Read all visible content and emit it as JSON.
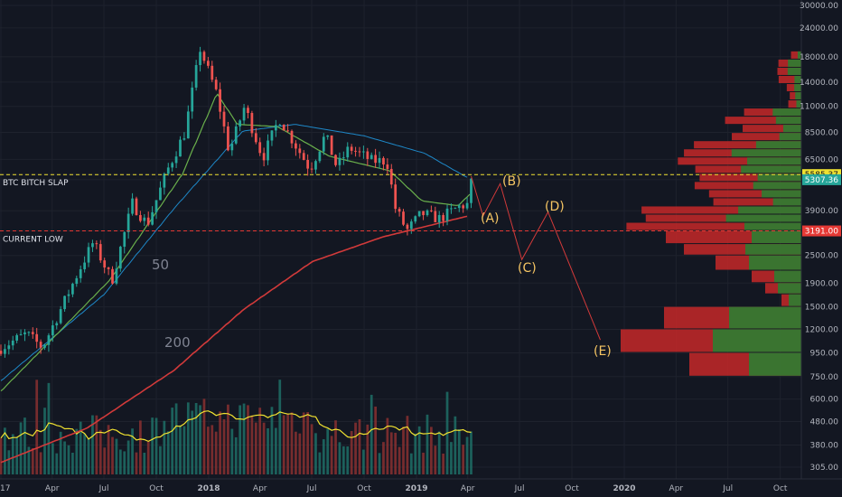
{
  "chart_data": {
    "type": "candlestick",
    "scale": "log",
    "colors": {
      "background": "#131722",
      "grid": "#1e222d",
      "up": "#26a69a",
      "down": "#ef5350",
      "ma50": "#1e88c8",
      "ma200": "#d23a3a",
      "ma_short": "#6ab04c",
      "volume_ma": "#f0e130",
      "wave": "#f5c563",
      "level_upper": "#f0e130",
      "level_lower": "#e53935",
      "axis_text": "#b2b5be",
      "profile_up": "#2e7d32",
      "profile_down": "#c62828"
    },
    "y_ticks": [
      305,
      380,
      480,
      600,
      750,
      950,
      1200,
      1500,
      1900,
      2500,
      3191,
      3900,
      5307.36,
      5585.37,
      6500,
      8500,
      11000,
      14000,
      18000,
      24000,
      30000
    ],
    "y_tick_labels": [
      "305.00",
      "380.00",
      "480.00",
      "600.00",
      "750.00",
      "950.00",
      "1200.00",
      "1500.00",
      "1900.00",
      "2500.00",
      "3191.00",
      "3900.00",
      "5307.36",
      "5585.37",
      "6500.00",
      "8500.00",
      "11000.00",
      "14000.00",
      "18000.00",
      "24000.00",
      "30000.00"
    ],
    "x_ticks": [
      "17",
      "Apr",
      "Jul",
      "Oct",
      "2018",
      "Apr",
      "Jul",
      "Oct",
      "2019",
      "Apr",
      "Jul",
      "Oct",
      "2020",
      "Apr",
      "Jul",
      "Oct"
    ],
    "horizontal_levels": [
      {
        "label": "BTC BITCH SLAP",
        "value": 5585.37,
        "style": "dashed"
      },
      {
        "label": "CURRENT LOW",
        "value": 3191.0,
        "style": "dashed"
      }
    ],
    "price_tags": [
      {
        "label": "5585.37",
        "value": 5585.37
      },
      {
        "label": "5307.36",
        "value": 5307.36
      },
      {
        "label": "3191.00",
        "value": 3191
      }
    ],
    "moving_average_labels": [
      {
        "label": "50"
      },
      {
        "label": "200"
      }
    ],
    "wave_labels": [
      {
        "label": "(A)",
        "value": 3700
      },
      {
        "label": "(B)",
        "value": 5100
      },
      {
        "label": "(C)",
        "value": 2150
      },
      {
        "label": "(D)",
        "value": 4200
      },
      {
        "label": "(E)",
        "value": 1000
      }
    ],
    "price_path_keypoints": [
      {
        "date": "2017-01-01",
        "price": 1000
      },
      {
        "date": "2017-02-15",
        "price": 1150
      },
      {
        "date": "2017-03-15",
        "price": 1000
      },
      {
        "date": "2017-05-20",
        "price": 2200
      },
      {
        "date": "2017-06-12",
        "price": 2850
      },
      {
        "date": "2017-07-15",
        "price": 1950
      },
      {
        "date": "2017-08-20",
        "price": 4200
      },
      {
        "date": "2017-09-15",
        "price": 3400
      },
      {
        "date": "2017-10-20",
        "price": 5800
      },
      {
        "date": "2017-11-20",
        "price": 8500
      },
      {
        "date": "2017-12-17",
        "price": 19500
      },
      {
        "date": "2018-01-15",
        "price": 12500
      },
      {
        "date": "2018-02-06",
        "price": 7000
      },
      {
        "date": "2018-03-05",
        "price": 11000
      },
      {
        "date": "2018-04-06",
        "price": 6600
      },
      {
        "date": "2018-05-05",
        "price": 9800
      },
      {
        "date": "2018-06-28",
        "price": 5900
      },
      {
        "date": "2018-07-25",
        "price": 8300
      },
      {
        "date": "2018-08-14",
        "price": 6000
      },
      {
        "date": "2018-09-05",
        "price": 7300
      },
      {
        "date": "2018-10-15",
        "price": 6400
      },
      {
        "date": "2018-11-10",
        "price": 6400
      },
      {
        "date": "2018-11-25",
        "price": 4000
      },
      {
        "date": "2018-12-15",
        "price": 3200
      },
      {
        "date": "2019-01-10",
        "price": 3800
      },
      {
        "date": "2019-02-10",
        "price": 3600
      },
      {
        "date": "2019-03-20",
        "price": 4100
      },
      {
        "date": "2019-04-01",
        "price": 4150
      },
      {
        "date": "2019-04-08",
        "price": 5300
      }
    ],
    "ma50_keypoints": [
      {
        "date": "2017-01-01",
        "price": 720
      },
      {
        "date": "2017-07-01",
        "price": 1700
      },
      {
        "date": "2017-11-01",
        "price": 4000
      },
      {
        "date": "2018-03-01",
        "price": 8600
      },
      {
        "date": "2018-06-01",
        "price": 9200
      },
      {
        "date": "2018-10-01",
        "price": 8200
      },
      {
        "date": "2019-01-15",
        "price": 6900
      },
      {
        "date": "2019-04-01",
        "price": 5400
      }
    ],
    "ma200_keypoints": [
      {
        "date": "2017-01-01",
        "price": 320
      },
      {
        "date": "2017-06-01",
        "price": 450
      },
      {
        "date": "2017-11-01",
        "price": 800
      },
      {
        "date": "2018-03-01",
        "price": 1450
      },
      {
        "date": "2018-07-01",
        "price": 2350
      },
      {
        "date": "2018-11-01",
        "price": 3000
      },
      {
        "date": "2019-04-01",
        "price": 3700
      }
    ],
    "ma_short_keypoints": [
      {
        "date": "2017-01-01",
        "price": 650
      },
      {
        "date": "2017-07-10",
        "price": 1950
      },
      {
        "date": "2017-11-15",
        "price": 5600
      },
      {
        "date": "2018-01-15",
        "price": 12500
      },
      {
        "date": "2018-02-20",
        "price": 9200
      },
      {
        "date": "2018-05-01",
        "price": 9000
      },
      {
        "date": "2018-08-01",
        "price": 6700
      },
      {
        "date": "2018-11-15",
        "price": 5800
      },
      {
        "date": "2019-01-10",
        "price": 4300
      },
      {
        "date": "2019-03-15",
        "price": 4100
      },
      {
        "date": "2019-04-08",
        "price": 4700
      }
    ],
    "wave_path": [
      {
        "date": "2019-04-07",
        "price": 5500
      },
      {
        "date": "2019-04-28",
        "price": 3700
      },
      {
        "date": "2019-05-28",
        "price": 5100
      },
      {
        "date": "2019-07-05",
        "price": 2400
      },
      {
        "date": "2019-08-20",
        "price": 3850
      },
      {
        "date": "2019-11-20",
        "price": 1080
      }
    ]
  }
}
